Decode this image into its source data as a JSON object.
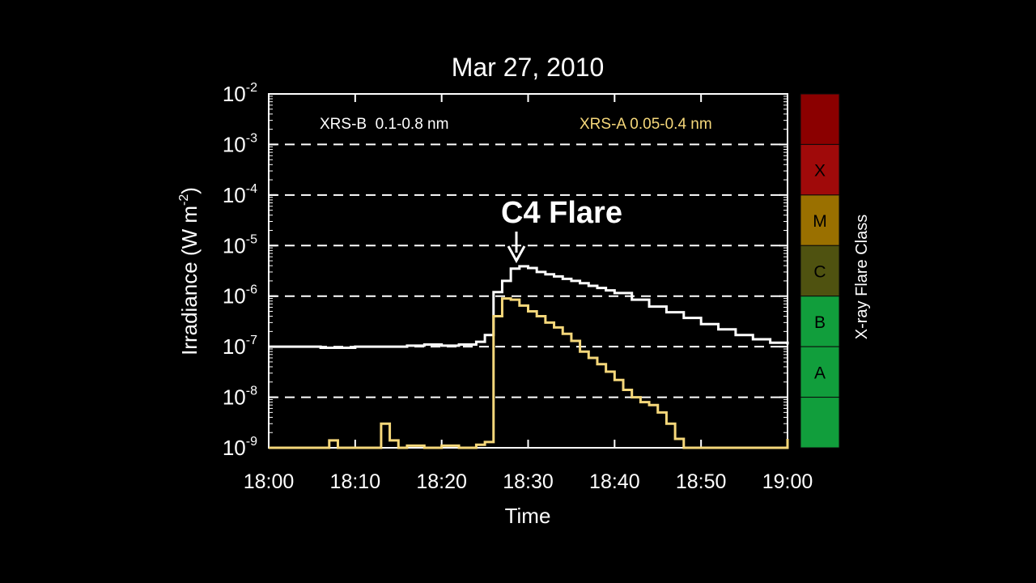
{
  "chart_data": {
    "type": "line",
    "title": "Mar 27, 2010",
    "xlabel": "Time",
    "ylabel": "Irradiance (W m",
    "ylabel_exp": "-2",
    "yscale": "log",
    "ylim": [
      1e-09,
      0.01
    ],
    "xlim": [
      "18:00",
      "19:00"
    ],
    "x_ticks": [
      "18:00",
      "18:10",
      "18:20",
      "18:30",
      "18:40",
      "18:50",
      "19:00"
    ],
    "y_ticks": [
      {
        "base": "10",
        "exp": "-2",
        "value": 0.01
      },
      {
        "base": "10",
        "exp": "-3",
        "value": 0.001
      },
      {
        "base": "10",
        "exp": "-4",
        "value": 0.0001
      },
      {
        "base": "10",
        "exp": "-5",
        "value": 1e-05
      },
      {
        "base": "10",
        "exp": "-6",
        "value": 1e-06
      },
      {
        "base": "10",
        "exp": "-7",
        "value": 1e-07
      },
      {
        "base": "10",
        "exp": "-8",
        "value": 1e-08
      },
      {
        "base": "10",
        "exp": "-9",
        "value": 1e-09
      }
    ],
    "grid": "dashed horizontal lines at each decade",
    "legend": [
      {
        "label": "XRS-B  0.1-0.8 nm",
        "color": "#ffffff"
      },
      {
        "label": "XRS-A 0.05-0.4 nm",
        "color": "#f5d77a"
      }
    ],
    "annotation": {
      "text": "C4 Flare",
      "x": "18:28",
      "y": 4e-06
    },
    "series": [
      {
        "name": "XRS-B  0.1-0.8 nm",
        "color": "#ffffff",
        "step": "post",
        "x": [
          "18:00",
          "18:04",
          "18:06",
          "18:10",
          "18:14",
          "18:16",
          "18:18",
          "18:20",
          "18:22",
          "18:24",
          "18:25",
          "18:26",
          "18:27",
          "18:28",
          "18:29",
          "18:30",
          "18:31",
          "18:32",
          "18:33",
          "18:34",
          "18:35",
          "18:36",
          "18:37",
          "18:38",
          "18:39",
          "18:40",
          "18:42",
          "18:44",
          "18:46",
          "18:48",
          "18:50",
          "18:52",
          "18:54",
          "18:56",
          "18:58",
          "19:00"
        ],
        "values": [
          1e-07,
          1e-07,
          9.5e-08,
          1e-07,
          1e-07,
          1.05e-07,
          1.1e-07,
          1.05e-07,
          1.1e-07,
          1.25e-07,
          1.7e-07,
          1.2e-06,
          2e-06,
          3.5e-06,
          3.9e-06,
          3.6e-06,
          3e-06,
          2.7e-06,
          2.45e-06,
          2.2e-06,
          2e-06,
          1.8e-06,
          1.6e-06,
          1.45e-06,
          1.3e-06,
          1.15e-06,
          8.5e-07,
          6.2e-07,
          4.8e-07,
          3.7e-07,
          2.8e-07,
          2.2e-07,
          1.7e-07,
          1.4e-07,
          1.2e-07,
          1.1e-07
        ]
      },
      {
        "name": "XRS-A 0.05-0.4 nm",
        "color": "#f5d77a",
        "step": "post",
        "x": [
          "18:00",
          "18:02",
          "18:04",
          "18:06",
          "18:07",
          "18:08",
          "18:10",
          "18:12",
          "18:13",
          "18:14",
          "18:15",
          "18:16",
          "18:18",
          "18:20",
          "18:22",
          "18:24",
          "18:25",
          "18:26",
          "18:27",
          "18:28",
          "18:29",
          "18:30",
          "18:31",
          "18:32",
          "18:33",
          "18:34",
          "18:35",
          "18:36",
          "18:37",
          "18:38",
          "18:39",
          "18:40",
          "18:41",
          "18:42",
          "18:43",
          "18:44",
          "18:45",
          "18:46",
          "18:47",
          "18:48",
          "18:50",
          "18:52",
          "18:54",
          "18:56",
          "18:58",
          "19:00"
        ],
        "values": [
          1e-09,
          1e-09,
          1e-09,
          1e-09,
          1.4e-09,
          1e-09,
          1e-09,
          1e-09,
          3e-09,
          1.4e-09,
          1e-09,
          1.1e-09,
          1e-09,
          1.1e-09,
          1e-09,
          1.15e-09,
          1.3e-09,
          4e-07,
          9e-07,
          8.5e-07,
          6.5e-07,
          5e-07,
          4e-07,
          3e-07,
          2.4e-07,
          1.8e-07,
          1.3e-07,
          8e-08,
          6e-08,
          4.5e-08,
          3.2e-08,
          2.2e-08,
          1.4e-08,
          1e-08,
          8e-09,
          7e-09,
          5e-09,
          3e-09,
          1.5e-09,
          1e-09,
          1e-09,
          1e-09,
          1e-09,
          1e-09,
          1e-09,
          1.5e-09
        ]
      }
    ],
    "flare_class": {
      "label": "X-ray Flare Class",
      "bands": [
        {
          "label": "",
          "from": 0.001,
          "to": 0.01,
          "color": "#8b0000"
        },
        {
          "label": "X",
          "from": 0.0001,
          "to": 0.001,
          "color": "#a00a0a"
        },
        {
          "label": "M",
          "from": 1e-05,
          "to": 0.0001,
          "color": "#9a7000"
        },
        {
          "label": "C",
          "from": 1e-06,
          "to": 1e-05,
          "color": "#4f5210"
        },
        {
          "label": "B",
          "from": 1e-07,
          "to": 1e-06,
          "color": "#119e3c"
        },
        {
          "label": "A",
          "from": 1e-08,
          "to": 1e-07,
          "color": "#119e3c"
        },
        {
          "label": "",
          "from": 1e-09,
          "to": 1e-08,
          "color": "#119e3c"
        }
      ]
    }
  }
}
